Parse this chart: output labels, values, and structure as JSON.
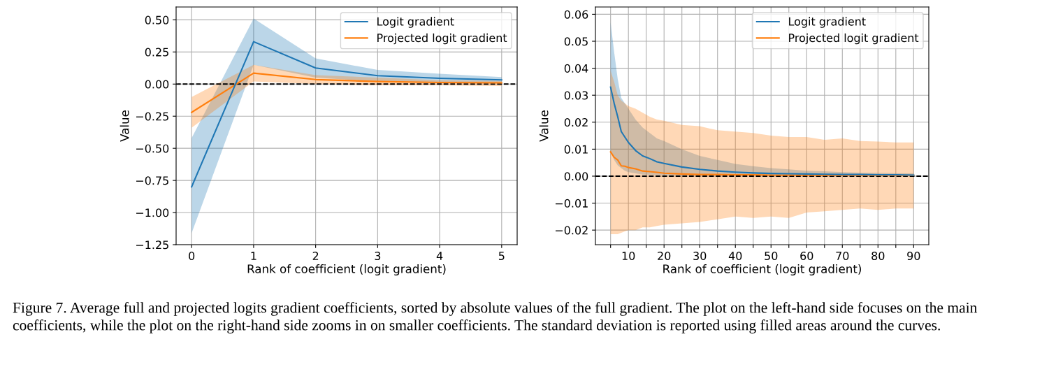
{
  "chart_data": [
    {
      "type": "line",
      "xlabel": "Rank of coefficient (logit gradient)",
      "ylabel": "Value",
      "x": [
        0,
        1,
        2,
        3,
        4,
        5
      ],
      "xlim": [
        -0.25,
        5.25
      ],
      "xticks": [
        0,
        1,
        2,
        3,
        4,
        5
      ],
      "ylim": [
        -1.25,
        0.6
      ],
      "yticks": [
        {
          "value": -1.25,
          "label": "−1.25"
        },
        {
          "value": -1.0,
          "label": "−1.00"
        },
        {
          "value": -0.75,
          "label": "−0.75"
        },
        {
          "value": -0.5,
          "label": "−0.50"
        },
        {
          "value": -0.25,
          "label": "−0.25"
        },
        {
          "value": 0.0,
          "label": "0.00"
        },
        {
          "value": 0.25,
          "label": "0.25"
        },
        {
          "value": 0.5,
          "label": "0.50"
        }
      ],
      "grid": true,
      "legend": "top right",
      "series": [
        {
          "name": "Logit gradient",
          "color": "#1f77b4",
          "values": [
            -0.8,
            0.33,
            0.125,
            0.065,
            0.045,
            0.033
          ],
          "lower": [
            -1.16,
            0.15,
            0.05,
            0.02,
            0.01,
            0.01
          ],
          "upper": [
            -0.42,
            0.51,
            0.2,
            0.11,
            0.08,
            0.055
          ]
        },
        {
          "name": "Projected logit gradient",
          "color": "#ff7f0e",
          "values": [
            -0.22,
            0.085,
            0.035,
            0.02,
            0.012,
            0.01
          ],
          "lower": [
            -0.34,
            0.02,
            0.0,
            -0.01,
            -0.01,
            -0.015
          ],
          "upper": [
            -0.1,
            0.15,
            0.07,
            0.05,
            0.03,
            0.025
          ]
        }
      ],
      "ref_lines": [
        {
          "axis": "y",
          "value": 0,
          "color": "#000000",
          "line_style": "dashed"
        }
      ]
    },
    {
      "type": "line",
      "xlabel": "Rank of coefficient (logit gradient)",
      "ylabel": "Value",
      "x": [
        5,
        6,
        7,
        8,
        9,
        10,
        12,
        14,
        16,
        18,
        20,
        25,
        30,
        35,
        40,
        45,
        50,
        55,
        60,
        65,
        70,
        75,
        80,
        85,
        90
      ],
      "xlim": [
        0.75,
        94.25
      ],
      "xticks": [
        {
          "value": 5,
          "label": null
        },
        10,
        {
          "value": 15,
          "label": null
        },
        20,
        {
          "value": 25,
          "label": null
        },
        30,
        {
          "value": 35,
          "label": null
        },
        40,
        {
          "value": 45,
          "label": null
        },
        50,
        {
          "value": 55,
          "label": null
        },
        60,
        {
          "value": 65,
          "label": null
        },
        70,
        {
          "value": 75,
          "label": null
        },
        80,
        {
          "value": 85,
          "label": null
        },
        90
      ],
      "ylim": [
        -0.0254,
        0.0627
      ],
      "yticks": [
        {
          "value": -0.02,
          "label": "−0.02"
        },
        {
          "value": -0.01,
          "label": "−0.01"
        },
        {
          "value": 0.0,
          "label": "0.00"
        },
        {
          "value": 0.01,
          "label": "0.01"
        },
        {
          "value": 0.02,
          "label": "0.02"
        },
        {
          "value": 0.03,
          "label": "0.03"
        },
        {
          "value": 0.04,
          "label": "0.04"
        },
        {
          "value": 0.05,
          "label": "0.05"
        },
        {
          "value": 0.06,
          "label": "0.06"
        }
      ],
      "grid": true,
      "legend": "top right",
      "series": [
        {
          "name": "Logit gradient",
          "color": "#1f77b4",
          "values": [
            0.033,
            0.027,
            0.022,
            0.0165,
            0.0145,
            0.0125,
            0.0095,
            0.0075,
            0.0065,
            0.0053,
            0.0047,
            0.0034,
            0.0025,
            0.0019,
            0.0015,
            0.0012,
            0.001,
            0.0009,
            0.0008,
            0.0007,
            0.0006,
            0.0006,
            0.0005,
            0.0005,
            0.0004
          ],
          "lower": [
            0.009,
            0.006,
            0.004,
            0.003,
            0.002,
            0.0015,
            0.001,
            0.0006,
            0.0005,
            0.0004,
            0.0003,
            0.0002,
            0.0002,
            0.0002,
            0.0002,
            0.0002,
            0.0002,
            0.0002,
            0.0002,
            0.0002,
            0.0002,
            0.0002,
            0.0002,
            0.0002,
            0.0002
          ],
          "upper": [
            0.057,
            0.046,
            0.036,
            0.029,
            0.027,
            0.025,
            0.021,
            0.018,
            0.016,
            0.014,
            0.013,
            0.01,
            0.0075,
            0.006,
            0.0045,
            0.0037,
            0.003,
            0.0025,
            0.002,
            0.0018,
            0.0015,
            0.0013,
            0.0012,
            0.0011,
            0.001
          ]
        },
        {
          "name": "Projected logit gradient",
          "color": "#ff7f0e",
          "values": [
            0.009,
            0.007,
            0.006,
            0.0038,
            0.0037,
            0.0032,
            0.0027,
            0.0019,
            0.0017,
            0.0014,
            0.0011,
            0.0008,
            0.0006,
            0.0006,
            0.0005,
            0.0005,
            0.0004,
            0.0004,
            0.0004,
            0.0003,
            0.0003,
            0.0003,
            0.0003,
            0.0003,
            0.0003
          ],
          "lower": [
            -0.0215,
            -0.0215,
            -0.0215,
            -0.021,
            -0.0205,
            -0.02,
            -0.02,
            -0.019,
            -0.019,
            -0.0185,
            -0.018,
            -0.0175,
            -0.017,
            -0.016,
            -0.015,
            -0.0155,
            -0.015,
            -0.0155,
            -0.0135,
            -0.013,
            -0.0125,
            -0.012,
            -0.0125,
            -0.012,
            -0.012
          ],
          "upper": [
            0.039,
            0.035,
            0.03,
            0.028,
            0.027,
            0.026,
            0.025,
            0.0235,
            0.022,
            0.021,
            0.0205,
            0.019,
            0.0185,
            0.017,
            0.0165,
            0.016,
            0.015,
            0.0145,
            0.0145,
            0.0135,
            0.014,
            0.013,
            0.0128,
            0.0125,
            0.0125
          ]
        }
      ],
      "ref_lines": [
        {
          "axis": "y",
          "value": 0,
          "color": "#000000",
          "line_style": "dashed"
        }
      ],
      "annotations": [
        "Figure 7. Average full and projected logits gradient coefficients, sorted by absolute values of the full gradient. The plot on the left-hand side focuses on the main coefficients, while the plot on the right-hand side zooms in on smaller coefficients. The standard deviation is reported using filled areas around the curves."
      ]
    }
  ]
}
